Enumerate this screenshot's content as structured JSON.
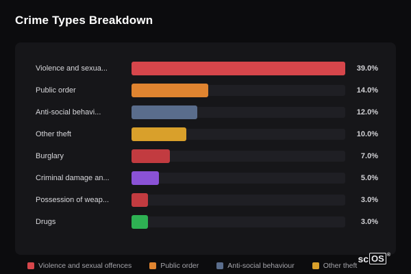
{
  "title": "Crime Types Breakdown",
  "chart_data": {
    "type": "bar",
    "orientation": "horizontal",
    "title": "Crime Types Breakdown",
    "categories": [
      "Violence and sexua...",
      "Public order",
      "Anti-social behavi...",
      "Other theft",
      "Burglary",
      "Criminal damage an...",
      "Possession of weap...",
      "Drugs"
    ],
    "values": [
      39.0,
      14.0,
      12.0,
      10.0,
      7.0,
      5.0,
      3.0,
      3.0
    ],
    "value_labels": [
      "39.0%",
      "14.0%",
      "12.0%",
      "10.0%",
      "7.0%",
      "5.0%",
      "3.0%",
      "3.0%"
    ],
    "colors": [
      "#d6464b",
      "#e08430",
      "#5a6d8c",
      "#d9a02b",
      "#c23b40",
      "#8a52d6",
      "#c23b40",
      "#2eb153"
    ],
    "max_value": 39.0,
    "xlim": [
      0,
      39
    ],
    "grid": false,
    "legend_position": "bottom"
  },
  "legend": {
    "items": [
      {
        "label": "Violence and sexual offences",
        "color": "#d6464b"
      },
      {
        "label": "Public order",
        "color": "#e08430"
      },
      {
        "label": "Anti-social behaviour",
        "color": "#5a6d8c"
      },
      {
        "label": "Other theft",
        "color": "#d9a02b"
      }
    ]
  },
  "logo": {
    "prefix": "sc",
    "boxed": "OS",
    "reg": "®"
  }
}
